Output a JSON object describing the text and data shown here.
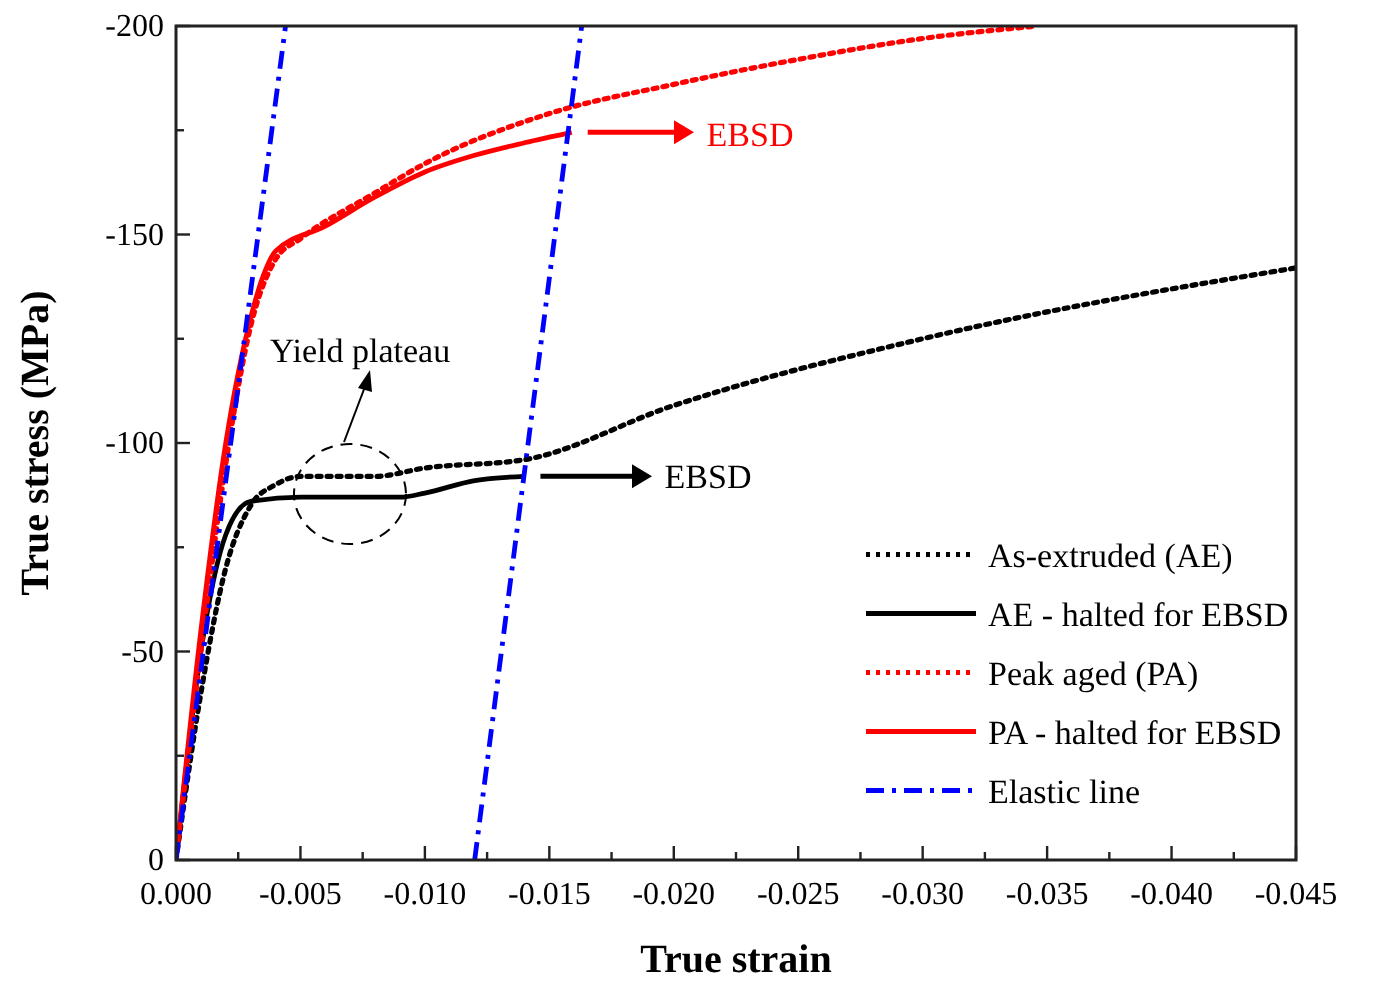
{
  "chart_data": {
    "type": "line",
    "xlabel": "True strain",
    "ylabel": "True stress (MPa)",
    "xlim": [
      0,
      -0.045
    ],
    "ylim": [
      0,
      -200
    ],
    "xticks": [
      {
        "value": 0,
        "label": "0.000"
      },
      {
        "value": -0.0025,
        "label": null
      },
      {
        "value": -0.005,
        "label": "-0.005"
      },
      {
        "value": -0.0075,
        "label": null
      },
      {
        "value": -0.01,
        "label": "-0.010"
      },
      {
        "value": -0.0125,
        "label": null
      },
      {
        "value": -0.015,
        "label": "-0.015"
      },
      {
        "value": -0.0175,
        "label": null
      },
      {
        "value": -0.02,
        "label": "-0.020"
      },
      {
        "value": -0.0225,
        "label": null
      },
      {
        "value": -0.025,
        "label": "-0.025"
      },
      {
        "value": -0.0275,
        "label": null
      },
      {
        "value": -0.03,
        "label": "-0.030"
      },
      {
        "value": -0.0325,
        "label": null
      },
      {
        "value": -0.035,
        "label": "-0.035"
      },
      {
        "value": -0.0375,
        "label": null
      },
      {
        "value": -0.04,
        "label": "-0.040"
      },
      {
        "value": -0.0425,
        "label": null
      },
      {
        "value": -0.045,
        "label": "-0.045"
      }
    ],
    "yticks": [
      0,
      {
        "value": -25,
        "label": null
      },
      -50,
      {
        "value": -75,
        "label": null
      },
      -100,
      {
        "value": -125,
        "label": null
      },
      -150,
      {
        "value": -175,
        "label": null
      },
      -200
    ],
    "legend": "bottom right",
    "grid": false,
    "marker": "none",
    "series": [
      {
        "name": "As-extruded (AE)",
        "color": "#000000",
        "line_style": "dotted",
        "x": [
          0,
          -0.001,
          -0.002,
          -0.003,
          -0.004,
          -0.005,
          -0.008,
          -0.01,
          -0.014,
          -0.02,
          -0.03,
          -0.045
        ],
        "values": [
          0,
          -40,
          -70,
          -85,
          -90,
          -92,
          -92,
          -94,
          -96,
          -109,
          -125,
          -142
        ]
      },
      {
        "name": "AE - halted for EBSD",
        "color": "#000000",
        "line_style": "solid",
        "x": [
          0,
          -0.001,
          -0.002,
          -0.003,
          -0.005,
          -0.009,
          -0.01,
          -0.012,
          -0.014
        ],
        "values": [
          0,
          -50,
          -78,
          -86,
          -87,
          -87,
          -88,
          -91,
          -92
        ]
      },
      {
        "name": "Peak aged (PA)",
        "color": "#ff0000",
        "line_style": "dotted",
        "x": [
          0,
          -0.001,
          -0.002,
          -0.003,
          -0.004,
          -0.005,
          -0.008,
          -0.01,
          -0.015,
          -0.02,
          -0.025,
          -0.03,
          -0.0346
        ],
        "values": [
          0,
          -50,
          -95,
          -128,
          -144,
          -149,
          -160,
          -167,
          -179,
          -186,
          -192,
          -197,
          -200
        ]
      },
      {
        "name": "PA - halted for EBSD",
        "color": "#ff0000",
        "line_style": "solid",
        "x": [
          0,
          -0.001,
          -0.002,
          -0.003,
          -0.0035,
          -0.004,
          -0.006,
          -0.008,
          -0.01,
          -0.012,
          -0.014,
          -0.0159
        ],
        "values": [
          0,
          -55,
          -100,
          -130,
          -140,
          -146,
          -152,
          -159,
          -165,
          -169,
          -172,
          -174.5
        ]
      },
      {
        "name": "Elastic line",
        "color": "#0000ff",
        "line_style": "dashdot",
        "x": [
          0,
          -0.0044,
          -0.008,
          -0.012,
          -0.0163
        ],
        "values": [
          0,
          -200,
          null,
          0,
          -200
        ]
      }
    ],
    "annotations": [
      "Yield plateau",
      "EBSD",
      "EBSD"
    ]
  }
}
